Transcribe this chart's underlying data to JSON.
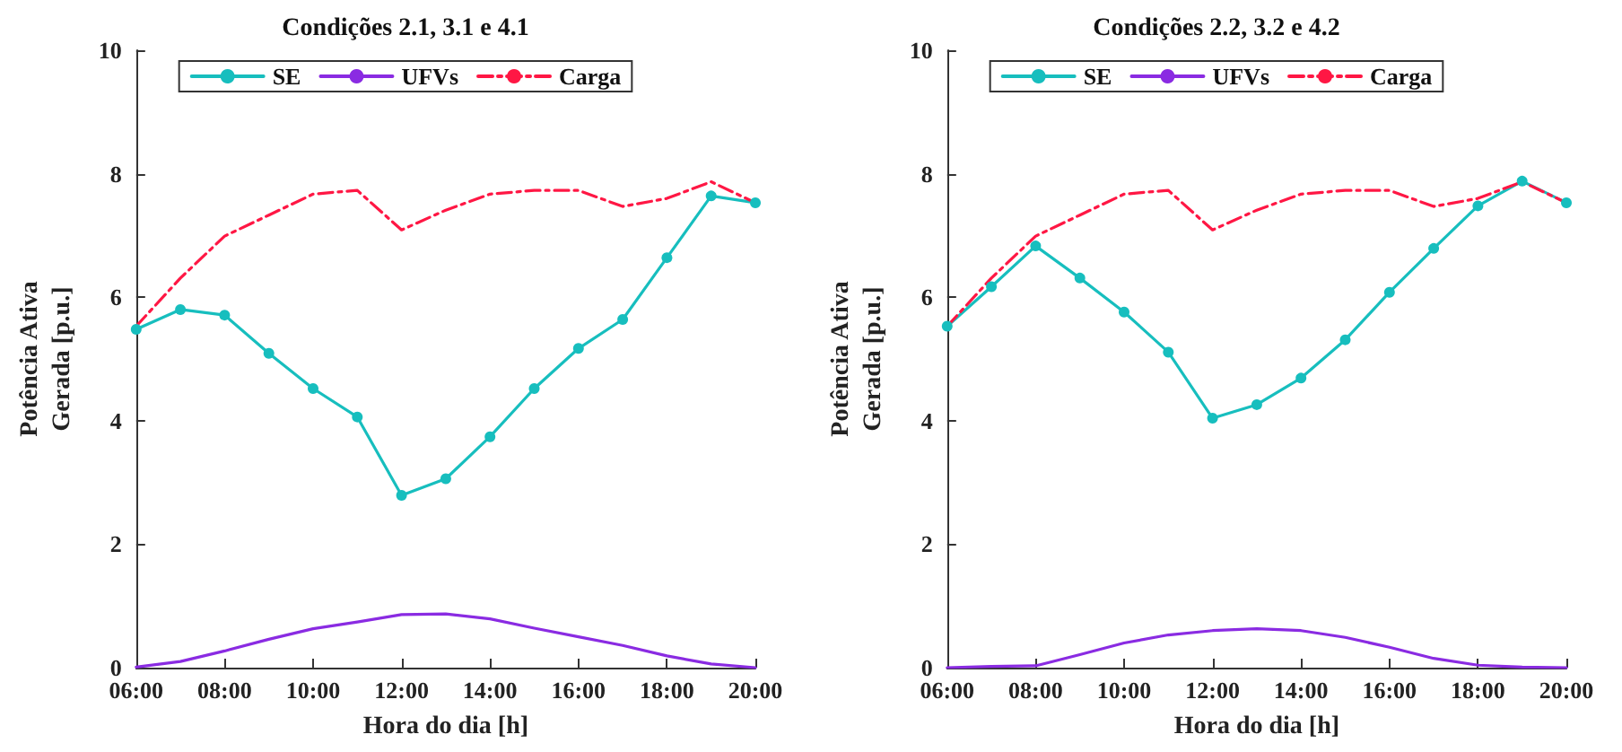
{
  "chart_data": [
    {
      "type": "line",
      "title": "Condições 2.1, 3.1 e 4.1",
      "xlabel": "Hora do dia [h]",
      "ylabel": "Potência Ativa\nGerada [p.u.]",
      "x": [
        6,
        7,
        8,
        9,
        10,
        11,
        12,
        13,
        14,
        15,
        16,
        17,
        18,
        19,
        20
      ],
      "xlim": [
        6,
        20
      ],
      "xticks": [
        {
          "value": 6,
          "label": "06:00"
        },
        {
          "value": 8,
          "label": "08:00"
        },
        {
          "value": 10,
          "label": "10:00"
        },
        {
          "value": 12,
          "label": "12:00"
        },
        {
          "value": 14,
          "label": "14:00"
        },
        {
          "value": 16,
          "label": "16:00"
        },
        {
          "value": 18,
          "label": "18:00"
        },
        {
          "value": 20,
          "label": "20:00"
        }
      ],
      "ylim": [
        0,
        10
      ],
      "yticks": [
        0,
        2,
        4,
        6,
        8,
        10
      ],
      "grid": false,
      "legend": "top",
      "series": [
        {
          "name": "SE",
          "color": "#17bebe",
          "marker": "circle",
          "line_style": "solid",
          "values": [
            5.48,
            5.8,
            5.71,
            5.09,
            4.52,
            4.06,
            2.79,
            3.06,
            3.74,
            4.52,
            5.17,
            5.64,
            6.64,
            7.64,
            7.53
          ]
        },
        {
          "name": "UFVs",
          "color": "#8a2be2",
          "marker": "none",
          "line_style": "solid",
          "values": [
            0.01,
            0.1,
            0.27,
            0.46,
            0.63,
            0.74,
            0.86,
            0.87,
            0.79,
            0.64,
            0.5,
            0.36,
            0.19,
            0.06,
            0
          ]
        },
        {
          "name": "Carga",
          "color": "#ff1744",
          "marker": "none",
          "line_style": "dashdot",
          "values": [
            5.53,
            6.31,
            6.99,
            7.33,
            7.67,
            7.73,
            7.09,
            7.41,
            7.67,
            7.73,
            7.73,
            7.47,
            7.6,
            7.87,
            7.53
          ]
        }
      ]
    },
    {
      "type": "line",
      "title": "Condições 2.2, 3.2 e 4.2",
      "xlabel": "Hora do dia [h]",
      "ylabel": "Potência Ativa\nGerada [p.u.]",
      "x": [
        6,
        7,
        8,
        9,
        10,
        11,
        12,
        13,
        14,
        15,
        16,
        17,
        18,
        19,
        20
      ],
      "xlim": [
        6,
        20
      ],
      "xticks": [
        {
          "value": 6,
          "label": "06:00"
        },
        {
          "value": 8,
          "label": "08:00"
        },
        {
          "value": 10,
          "label": "10:00"
        },
        {
          "value": 12,
          "label": "12:00"
        },
        {
          "value": 14,
          "label": "14:00"
        },
        {
          "value": 16,
          "label": "16:00"
        },
        {
          "value": 18,
          "label": "18:00"
        },
        {
          "value": 20,
          "label": "20:00"
        }
      ],
      "ylim": [
        0,
        10
      ],
      "yticks": [
        0,
        2,
        4,
        6,
        8,
        10
      ],
      "grid": false,
      "legend": "top",
      "series": [
        {
          "name": "SE",
          "color": "#17bebe",
          "marker": "circle",
          "line_style": "solid",
          "values": [
            5.53,
            6.17,
            6.83,
            6.31,
            5.76,
            5.11,
            4.04,
            4.26,
            4.69,
            5.31,
            6.08,
            6.79,
            7.48,
            7.88,
            7.53
          ]
        },
        {
          "name": "UFVs",
          "color": "#8a2be2",
          "marker": "none",
          "line_style": "solid",
          "values": [
            0,
            0.02,
            0.03,
            0.21,
            0.4,
            0.53,
            0.6,
            0.63,
            0.6,
            0.49,
            0.33,
            0.15,
            0.04,
            0.01,
            0
          ]
        },
        {
          "name": "Carga",
          "color": "#ff1744",
          "marker": "none",
          "line_style": "dashdot",
          "values": [
            5.53,
            6.31,
            6.99,
            7.33,
            7.67,
            7.73,
            7.09,
            7.41,
            7.67,
            7.73,
            7.73,
            7.47,
            7.6,
            7.87,
            7.53
          ]
        }
      ]
    }
  ]
}
